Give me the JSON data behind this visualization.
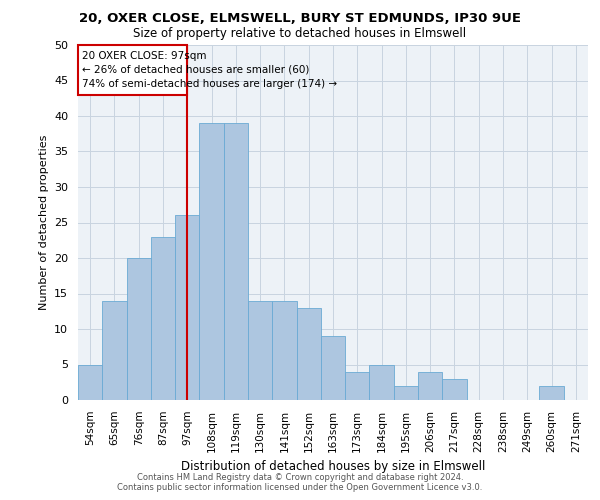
{
  "title_line1": "20, OXER CLOSE, ELMSWELL, BURY ST EDMUNDS, IP30 9UE",
  "title_line2": "Size of property relative to detached houses in Elmswell",
  "xlabel": "Distribution of detached houses by size in Elmswell",
  "ylabel": "Number of detached properties",
  "categories": [
    "54sqm",
    "65sqm",
    "76sqm",
    "87sqm",
    "97sqm",
    "108sqm",
    "119sqm",
    "130sqm",
    "141sqm",
    "152sqm",
    "163sqm",
    "173sqm",
    "184sqm",
    "195sqm",
    "206sqm",
    "217sqm",
    "228sqm",
    "238sqm",
    "249sqm",
    "260sqm",
    "271sqm"
  ],
  "values": [
    5,
    14,
    20,
    23,
    26,
    39,
    39,
    14,
    14,
    13,
    9,
    4,
    5,
    2,
    4,
    3,
    0,
    0,
    0,
    2,
    0
  ],
  "bar_color": "#adc6e0",
  "bar_edge_color": "#6aaad4",
  "vline_x_index": 4,
  "vline_color": "#cc0000",
  "annotation_box_color": "#cc0000",
  "annotation_title": "20 OXER CLOSE: 97sqm",
  "annotation_line1": "← 26% of detached houses are smaller (60)",
  "annotation_line2": "74% of semi-detached houses are larger (174) →",
  "ylim": [
    0,
    50
  ],
  "yticks": [
    0,
    5,
    10,
    15,
    20,
    25,
    30,
    35,
    40,
    45,
    50
  ],
  "grid_color": "#c8d4e0",
  "bg_color": "#edf2f7",
  "footer_line1": "Contains HM Land Registry data © Crown copyright and database right 2024.",
  "footer_line2": "Contains public sector information licensed under the Open Government Licence v3.0."
}
